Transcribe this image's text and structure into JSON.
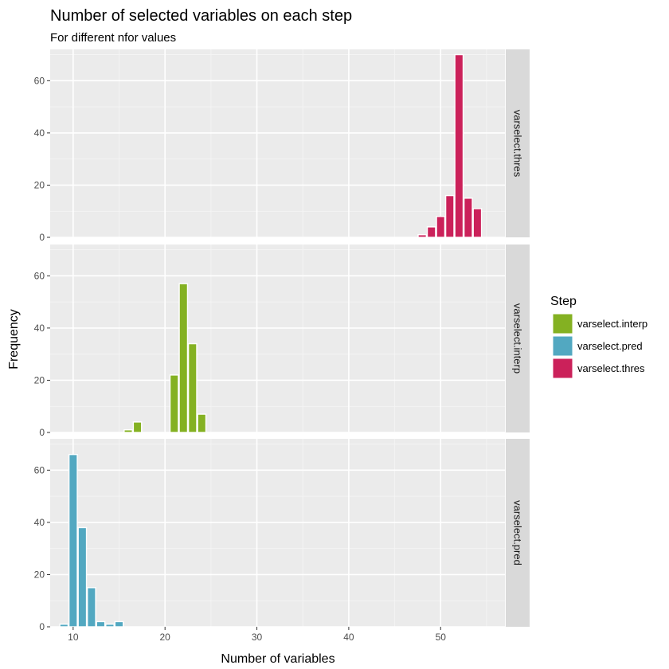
{
  "chart_data": {
    "type": "bar",
    "title": "Number of selected variables on each step",
    "subtitle": "For different nfor values",
    "xlabel": "Number of variables",
    "ylabel": "Frequency",
    "xlim": [
      7.5,
      57
    ],
    "ylim": [
      0,
      72
    ],
    "x_ticks": [
      10,
      20,
      30,
      40,
      50
    ],
    "y_ticks": [
      0,
      20,
      40,
      60
    ],
    "grid": true,
    "legend_position": "right",
    "legend": {
      "title": "Step",
      "items": [
        {
          "label": "varselect.interp",
          "color": "#84B122"
        },
        {
          "label": "varselect.pred",
          "color": "#52A8C1"
        },
        {
          "label": "varselect.thres",
          "color": "#CB215A"
        }
      ]
    },
    "panels": [
      {
        "strip": "varselect.thres",
        "color": "#CB215A",
        "bars": [
          {
            "x": 48,
            "y": 1
          },
          {
            "x": 49,
            "y": 4
          },
          {
            "x": 50,
            "y": 8
          },
          {
            "x": 51,
            "y": 16
          },
          {
            "x": 52,
            "y": 70
          },
          {
            "x": 53,
            "y": 15
          },
          {
            "x": 54,
            "y": 11
          }
        ]
      },
      {
        "strip": "varselect.interp",
        "color": "#84B122",
        "bars": [
          {
            "x": 16,
            "y": 1
          },
          {
            "x": 17,
            "y": 4
          },
          {
            "x": 21,
            "y": 22
          },
          {
            "x": 22,
            "y": 57
          },
          {
            "x": 23,
            "y": 34
          },
          {
            "x": 24,
            "y": 7
          }
        ]
      },
      {
        "strip": "varselect.pred",
        "color": "#52A8C1",
        "bars": [
          {
            "x": 9,
            "y": 1
          },
          {
            "x": 10,
            "y": 66
          },
          {
            "x": 11,
            "y": 38
          },
          {
            "x": 12,
            "y": 15
          },
          {
            "x": 13,
            "y": 2
          },
          {
            "x": 14,
            "y": 1
          },
          {
            "x": 15,
            "y": 2
          }
        ]
      }
    ]
  }
}
